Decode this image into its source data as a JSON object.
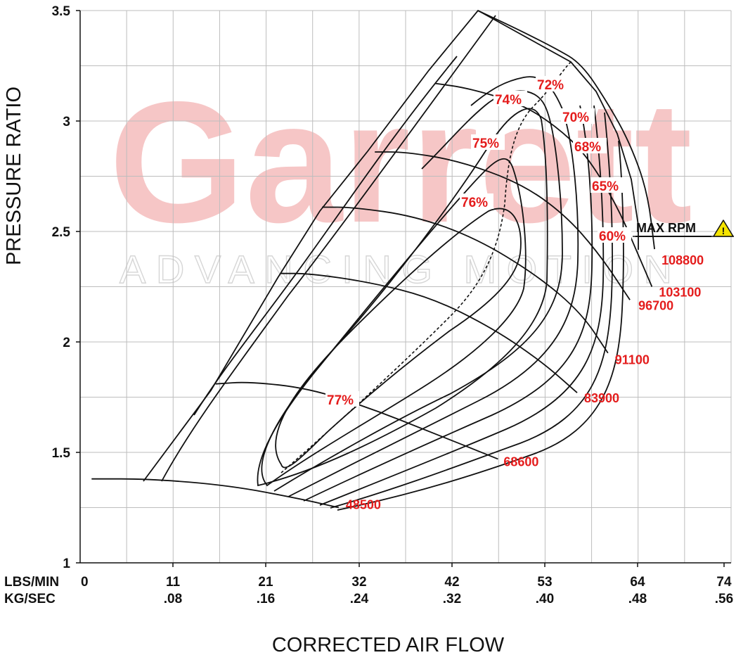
{
  "watermark": {
    "brand": "Garrett",
    "tagline": "ADVANCING MOTION"
  },
  "chart_data": {
    "type": "line",
    "subtype": "compressor-map",
    "xlabel": "CORRECTED AIR FLOW",
    "ylabel": "PRESSURE RATIO",
    "xlim": [
      0,
      74
    ],
    "ylim": [
      1,
      3.5
    ],
    "grid": true,
    "x_units": [
      "LBS/MIN",
      "KG/SEC"
    ],
    "x_ticks": [
      {
        "lbs": "0",
        "kg": ""
      },
      {
        "lbs": "11",
        "kg": ".08"
      },
      {
        "lbs": "21",
        "kg": ".16"
      },
      {
        "lbs": "32",
        "kg": ".24"
      },
      {
        "lbs": "42",
        "kg": ".32"
      },
      {
        "lbs": "53",
        "kg": ".40"
      },
      {
        "lbs": "64",
        "kg": ".48"
      },
      {
        "lbs": "74",
        "kg": ".56"
      }
    ],
    "y_ticks": [
      "1",
      "1.5",
      "2",
      "2.5",
      "3",
      "3.5"
    ],
    "speed_lines": [
      {
        "label": "48500",
        "points": [
          [
            1.3,
            1.38
          ],
          [
            8,
            1.38
          ],
          [
            17,
            1.35
          ],
          [
            25,
            1.29
          ],
          [
            29.4,
            1.25
          ]
        ]
      },
      {
        "label": "68600",
        "points": [
          [
            15.4,
            1.81
          ],
          [
            19.2,
            1.82
          ],
          [
            26,
            1.79
          ],
          [
            33,
            1.7
          ],
          [
            40,
            1.59
          ],
          [
            47.5,
            1.47
          ]
        ]
      },
      {
        "label": "83900",
        "points": [
          [
            22.8,
            2.31
          ],
          [
            26,
            2.31
          ],
          [
            33,
            2.27
          ],
          [
            40,
            2.2
          ],
          [
            47,
            2.06
          ],
          [
            52.5,
            1.91
          ],
          [
            56.5,
            1.77
          ]
        ]
      },
      {
        "label": "91100",
        "points": [
          [
            27.5,
            2.61
          ],
          [
            31,
            2.61
          ],
          [
            38,
            2.57
          ],
          [
            45,
            2.47
          ],
          [
            52,
            2.3
          ],
          [
            57,
            2.13
          ],
          [
            60,
            1.95
          ]
        ]
      },
      {
        "label": "96700",
        "points": [
          [
            33.5,
            2.86
          ],
          [
            37,
            2.86
          ],
          [
            43,
            2.82
          ],
          [
            50,
            2.72
          ],
          [
            55,
            2.58
          ],
          [
            59,
            2.4
          ],
          [
            62.5,
            2.19
          ]
        ]
      },
      {
        "label": "103100",
        "points": [
          [
            40.4,
            3.17
          ],
          [
            44,
            3.15
          ],
          [
            50,
            3.08
          ],
          [
            54,
            2.98
          ],
          [
            57.5,
            2.85
          ],
          [
            61,
            2.62
          ],
          [
            63.5,
            2.39
          ],
          [
            65,
            2.25
          ]
        ]
      },
      {
        "label": "108800",
        "points": [
          [
            45.2,
            3.5
          ],
          [
            49.5,
            3.42
          ],
          [
            54,
            3.33
          ],
          [
            57,
            3.26
          ],
          [
            60,
            3.08
          ],
          [
            62.5,
            2.9
          ],
          [
            64.5,
            2.68
          ],
          [
            65.3,
            2.42
          ]
        ]
      }
    ],
    "efficiency_islands": [
      "77%",
      "76%",
      "75%",
      "74%",
      "72%",
      "70%",
      "68%",
      "65%",
      "60%"
    ],
    "annotations": {
      "max_rpm": "MAX RPM",
      "warning_icon": "warning-triangle-icon"
    },
    "colors": {
      "labels": "#e41c1c",
      "lines": "#111111",
      "grid": "#bdbdbd",
      "watermark": "#f6c6c6"
    }
  }
}
